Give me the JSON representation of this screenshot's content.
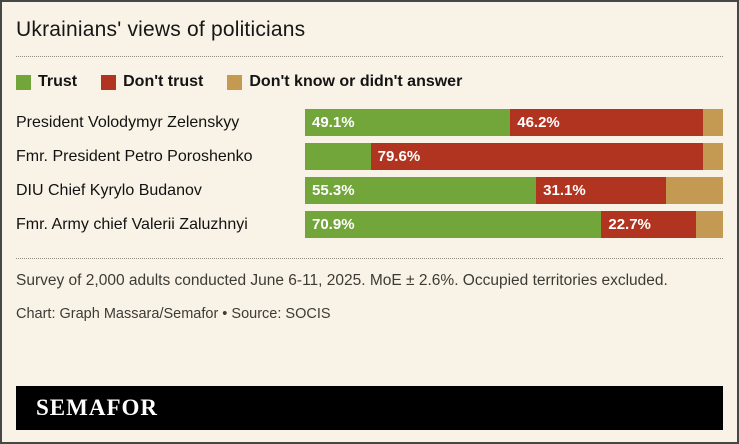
{
  "title": "Ukrainians' views of politicians",
  "legend": [
    {
      "label": "Trust",
      "color": "#72a53a"
    },
    {
      "label": "Don't trust",
      "color": "#b13420"
    },
    {
      "label": "Don't know or didn't answer",
      "color": "#c49a52"
    }
  ],
  "chart_data": {
    "type": "bar",
    "orientation": "horizontal",
    "stacked": true,
    "title": "Ukrainians' views of politicians",
    "categories": [
      "President Volodymyr Zelenskyy",
      "Fmr. President Petro Poroshenko",
      "DIU Chief Kyrylo Budanov",
      "Fmr. Army chief Valerii Zaluzhnyi"
    ],
    "series": [
      {
        "name": "Trust",
        "values": [
          49.1,
          15.7,
          55.3,
          70.9
        ]
      },
      {
        "name": "Don't trust",
        "values": [
          46.2,
          79.6,
          31.1,
          22.7
        ]
      },
      {
        "name": "Don't know or didn't answer",
        "values": [
          4.7,
          4.7,
          13.6,
          6.4
        ]
      }
    ],
    "bar_labels": [
      [
        "49.1%",
        "46.2%",
        ""
      ],
      [
        "",
        "79.6%",
        ""
      ],
      [
        "55.3%",
        "31.1%",
        ""
      ],
      [
        "70.9%",
        "22.7%",
        ""
      ]
    ],
    "xlim": [
      0,
      100
    ],
    "legend_position": "top",
    "grid": false
  },
  "notes": {
    "line1": "Survey of 2,000 adults conducted June 6-11, 2025. MoE ± 2.6%. Occupied territories excluded.",
    "credit": "Chart: Graph Massara/Semafor • Source: SOCIS"
  },
  "footer": {
    "brand": "SEMAFOR"
  }
}
